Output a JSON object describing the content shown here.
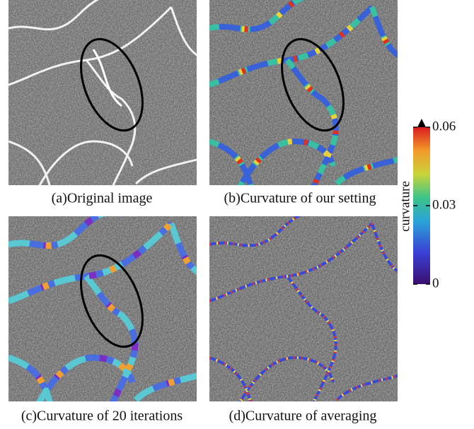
{
  "panels": [
    {
      "caption": "(a)Original image"
    },
    {
      "caption": "(b)Curvature of our setting"
    },
    {
      "caption": "(c)Curvature of 20 iterations"
    },
    {
      "caption": "(d)Curvature of averaging"
    }
  ],
  "colorbar": {
    "label": "curvature",
    "lim": [
      0,
      0.06
    ],
    "ticks": [
      0,
      0.03,
      0.06
    ]
  }
}
